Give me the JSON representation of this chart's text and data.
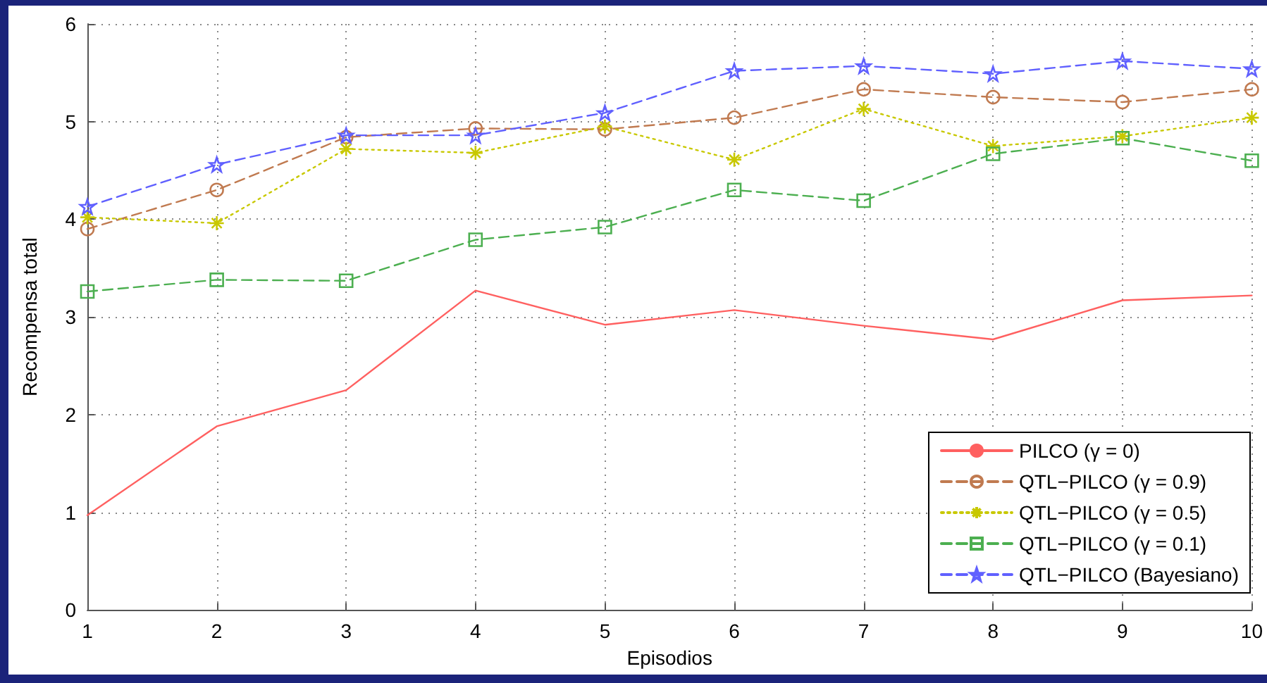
{
  "chart_data": {
    "type": "line",
    "xlabel": "Episodios",
    "ylabel": "Recompensa total",
    "x": [
      1,
      2,
      3,
      4,
      5,
      6,
      7,
      8,
      9,
      10
    ],
    "xlim": [
      1,
      10
    ],
    "xticks": [
      1,
      2,
      3,
      4,
      5,
      6,
      7,
      8,
      9,
      10
    ],
    "ylim": [
      0,
      6
    ],
    "yticks": [
      0,
      1,
      2,
      3,
      4,
      5,
      6
    ],
    "grid": true,
    "legend": "bottom right",
    "series": [
      {
        "name": "PILCO (γ = 0)",
        "color": "#ff6060",
        "marker": "none",
        "line_style": "solid",
        "values": [
          0.97,
          1.88,
          2.25,
          3.27,
          2.92,
          3.07,
          2.91,
          2.77,
          3.17,
          3.22
        ]
      },
      {
        "name": "QTL−PILCO (γ = 0.9)",
        "color": "#c07a50",
        "marker": "circle",
        "line_style": "dashed",
        "values": [
          3.9,
          4.3,
          4.84,
          4.93,
          4.92,
          5.04,
          5.33,
          5.25,
          5.2,
          5.33
        ]
      },
      {
        "name": "QTL−PILCO (γ = 0.5)",
        "color": "#c8c800",
        "marker": "cross",
        "line_style": "dotted",
        "values": [
          4.02,
          3.96,
          4.72,
          4.68,
          4.95,
          4.61,
          5.13,
          4.75,
          4.85,
          5.04
        ]
      },
      {
        "name": "QTL−PILCO (γ = 0.1)",
        "color": "#4caf50",
        "marker": "square",
        "line_style": "dashed",
        "values": [
          3.26,
          3.38,
          3.37,
          3.79,
          3.92,
          4.3,
          4.19,
          4.67,
          4.83,
          4.6
        ]
      },
      {
        "name": "QTL−PILCO (Bayesiano)",
        "color": "#6060ff",
        "marker": "star",
        "line_style": "dashed",
        "values": [
          4.13,
          4.56,
          4.86,
          4.86,
          5.09,
          5.52,
          5.57,
          5.49,
          5.62,
          5.54
        ]
      }
    ]
  }
}
